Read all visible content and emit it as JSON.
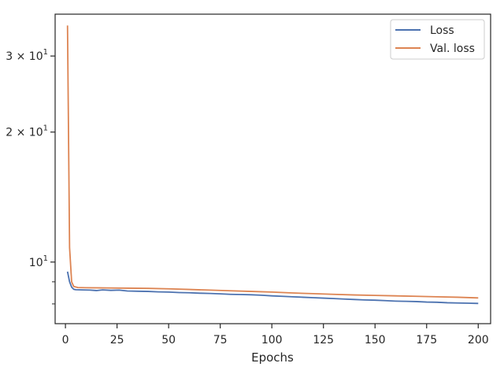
{
  "chart_data": {
    "type": "line",
    "xlabel": "Epochs",
    "ylabel": "",
    "yscale": "log",
    "xlim": [
      -5,
      206
    ],
    "ylim": [
      7.2,
      37.5
    ],
    "grid": false,
    "legend_position": "top-right",
    "x_ticks": [
      {
        "value": 0,
        "label": "0"
      },
      {
        "value": 25,
        "label": "25"
      },
      {
        "value": 50,
        "label": "50"
      },
      {
        "value": 75,
        "label": "75"
      },
      {
        "value": 100,
        "label": "100"
      },
      {
        "value": 125,
        "label": "125"
      },
      {
        "value": 150,
        "label": "150"
      },
      {
        "value": 175,
        "label": "175"
      },
      {
        "value": 200,
        "label": "200"
      }
    ],
    "y_major_ticks": [
      {
        "value": 10,
        "base": "10",
        "exp": "1",
        "coef": ""
      },
      {
        "value": 20,
        "base": "10",
        "exp": "1",
        "coef": "2 × "
      },
      {
        "value": 30,
        "base": "10",
        "exp": "1",
        "coef": "3 × "
      }
    ],
    "y_minor_ticks": [
      8,
      9
    ],
    "series": [
      {
        "name": "Loss",
        "color": "#4c72b0",
        "points": [
          [
            1,
            9.5
          ],
          [
            2,
            9.0
          ],
          [
            3,
            8.75
          ],
          [
            4,
            8.65
          ],
          [
            5,
            8.63
          ],
          [
            8,
            8.62
          ],
          [
            12,
            8.61
          ],
          [
            15,
            8.59
          ],
          [
            18,
            8.62
          ],
          [
            22,
            8.6
          ],
          [
            26,
            8.61
          ],
          [
            30,
            8.57
          ],
          [
            35,
            8.56
          ],
          [
            40,
            8.55
          ],
          [
            45,
            8.53
          ],
          [
            50,
            8.52
          ],
          [
            55,
            8.5
          ],
          [
            60,
            8.49
          ],
          [
            65,
            8.47
          ],
          [
            70,
            8.46
          ],
          [
            75,
            8.44
          ],
          [
            80,
            8.42
          ],
          [
            85,
            8.41
          ],
          [
            90,
            8.4
          ],
          [
            95,
            8.38
          ],
          [
            100,
            8.35
          ],
          [
            105,
            8.33
          ],
          [
            110,
            8.31
          ],
          [
            115,
            8.29
          ],
          [
            120,
            8.27
          ],
          [
            125,
            8.25
          ],
          [
            130,
            8.23
          ],
          [
            135,
            8.21
          ],
          [
            140,
            8.19
          ],
          [
            145,
            8.17
          ],
          [
            150,
            8.16
          ],
          [
            155,
            8.14
          ],
          [
            160,
            8.12
          ],
          [
            165,
            8.11
          ],
          [
            170,
            8.1
          ],
          [
            175,
            8.08
          ],
          [
            180,
            8.07
          ],
          [
            185,
            8.05
          ],
          [
            190,
            8.04
          ],
          [
            195,
            8.03
          ],
          [
            200,
            8.02
          ]
        ]
      },
      {
        "name": "Val. loss",
        "color": "#dd8452",
        "points": [
          [
            1,
            35.3
          ],
          [
            2,
            10.8
          ],
          [
            3,
            9.0
          ],
          [
            4,
            8.78
          ],
          [
            6,
            8.73
          ],
          [
            10,
            8.72
          ],
          [
            20,
            8.71
          ],
          [
            30,
            8.7
          ],
          [
            40,
            8.69
          ],
          [
            50,
            8.67
          ],
          [
            60,
            8.64
          ],
          [
            70,
            8.61
          ],
          [
            80,
            8.58
          ],
          [
            90,
            8.55
          ],
          [
            100,
            8.52
          ],
          [
            110,
            8.48
          ],
          [
            120,
            8.45
          ],
          [
            130,
            8.42
          ],
          [
            140,
            8.39
          ],
          [
            150,
            8.37
          ],
          [
            160,
            8.35
          ],
          [
            170,
            8.33
          ],
          [
            180,
            8.31
          ],
          [
            190,
            8.29
          ],
          [
            200,
            8.26
          ]
        ]
      }
    ]
  }
}
